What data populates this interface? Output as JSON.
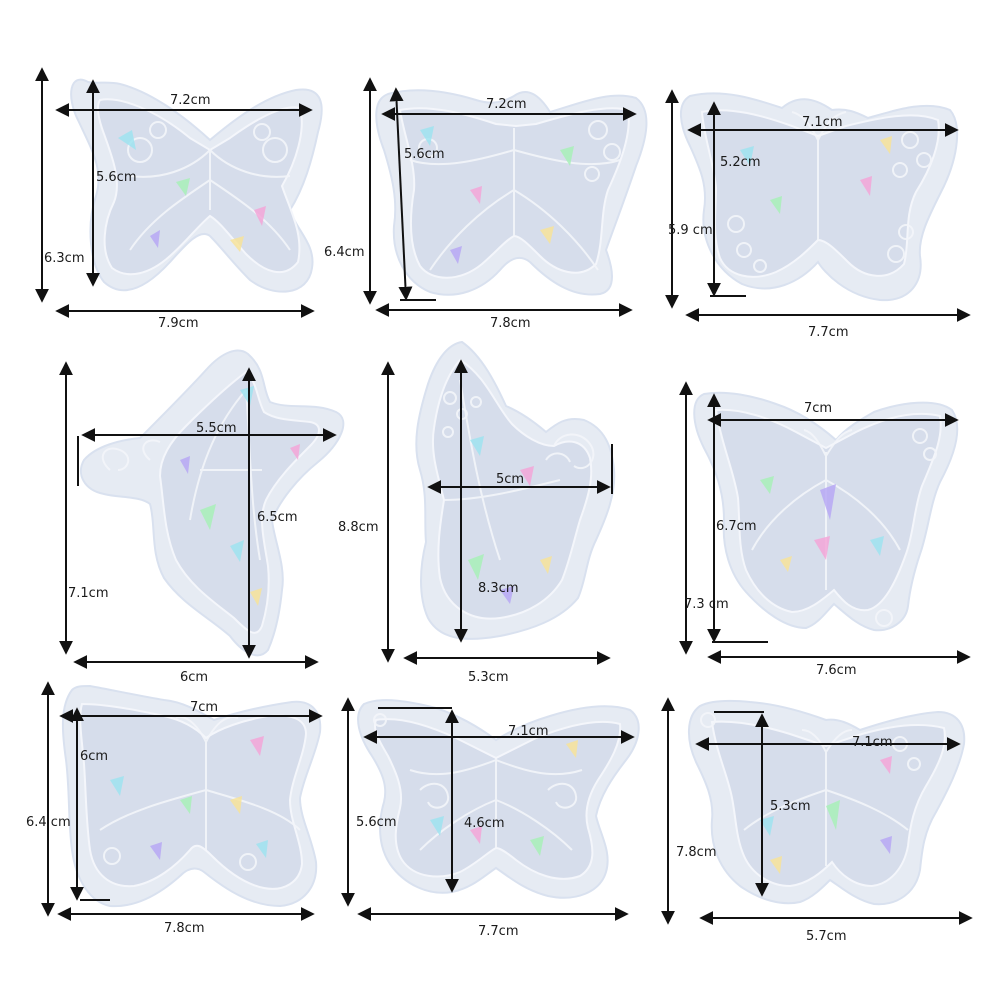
{
  "image": {
    "background": "#ffffff",
    "mold_color": "#e6ebf3",
    "cavity_color": "#d6ddeb",
    "holo_colors": [
      "#9fe3f0",
      "#f3a6d8",
      "#a8f0b8",
      "#f7e39a",
      "#b7a8f5"
    ]
  },
  "molds": [
    {
      "name": "mold-1",
      "width_label": "7.2cm",
      "height_label": "5.6cm",
      "overall_height_label": "6.3cm",
      "overall_width_label": "7.9cm"
    },
    {
      "name": "mold-2",
      "width_label": "7.2cm",
      "height_label": "5.6cm",
      "overall_height_label": "6.4cm",
      "overall_width_label": "7.8cm"
    },
    {
      "name": "mold-3",
      "width_label": "7.1cm",
      "height_label": "5.2cm",
      "overall_height_label": "5.9 cm",
      "overall_width_label": "7.7cm"
    },
    {
      "name": "mold-4",
      "width_label": "5.5cm",
      "height_label": "6.5cm",
      "overall_height_label": "7.1cm",
      "overall_width_label": "6cm"
    },
    {
      "name": "mold-5",
      "width_label": "5cm",
      "height_label": "8.3cm",
      "overall_height_label": "8.8cm",
      "overall_width_label": "5.3cm"
    },
    {
      "name": "mold-6",
      "width_label": "7cm",
      "height_label": "6.7cm",
      "overall_height_label": "7.3 cm",
      "overall_width_label": "7.6cm"
    },
    {
      "name": "mold-7",
      "width_label": "7cm",
      "height_label": "6cm",
      "overall_height_label": "6.4 cm",
      "overall_width_label": "7.8cm"
    },
    {
      "name": "mold-8",
      "width_label": "7.1cm",
      "height_label": "4.6cm",
      "overall_height_label": "5.6cm",
      "overall_width_label": "7.7cm"
    },
    {
      "name": "mold-9",
      "width_label": "7.1cm",
      "height_label": "5.3cm",
      "overall_height_label": "7.8cm",
      "overall_width_label": "5.7cm"
    }
  ]
}
